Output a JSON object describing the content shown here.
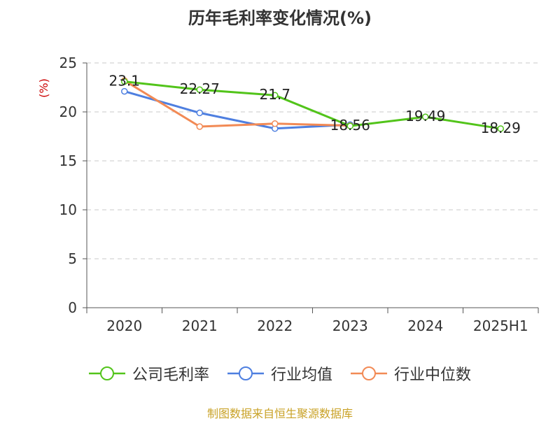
{
  "chart_data": {
    "type": "line",
    "title": "历年毛利率变化情况(%)",
    "ylabel": "(%)",
    "categories": [
      "2020",
      "2021",
      "2022",
      "2023",
      "2024",
      "2025H1"
    ],
    "ylim": [
      0,
      25
    ],
    "yticks": [
      0,
      5,
      10,
      15,
      20,
      25
    ],
    "grid": true,
    "legend_position": "bottom",
    "series": [
      {
        "name": "公司毛利率",
        "color": "#52c41a",
        "values": [
          23.1,
          22.27,
          21.7,
          18.56,
          19.49,
          18.29
        ],
        "labels": [
          "23.1",
          "22.27",
          "21.7",
          "18.56",
          "19.49",
          "18.29"
        ]
      },
      {
        "name": "行业均值",
        "color": "#4e7fe0",
        "values": [
          22.1,
          19.9,
          18.3,
          18.7,
          null,
          null
        ]
      },
      {
        "name": "行业中位数",
        "color": "#f28a55",
        "values": [
          23.2,
          18.5,
          18.8,
          18.6,
          null,
          null
        ]
      }
    ]
  },
  "source": "制图数据来自恒生聚源数据库"
}
